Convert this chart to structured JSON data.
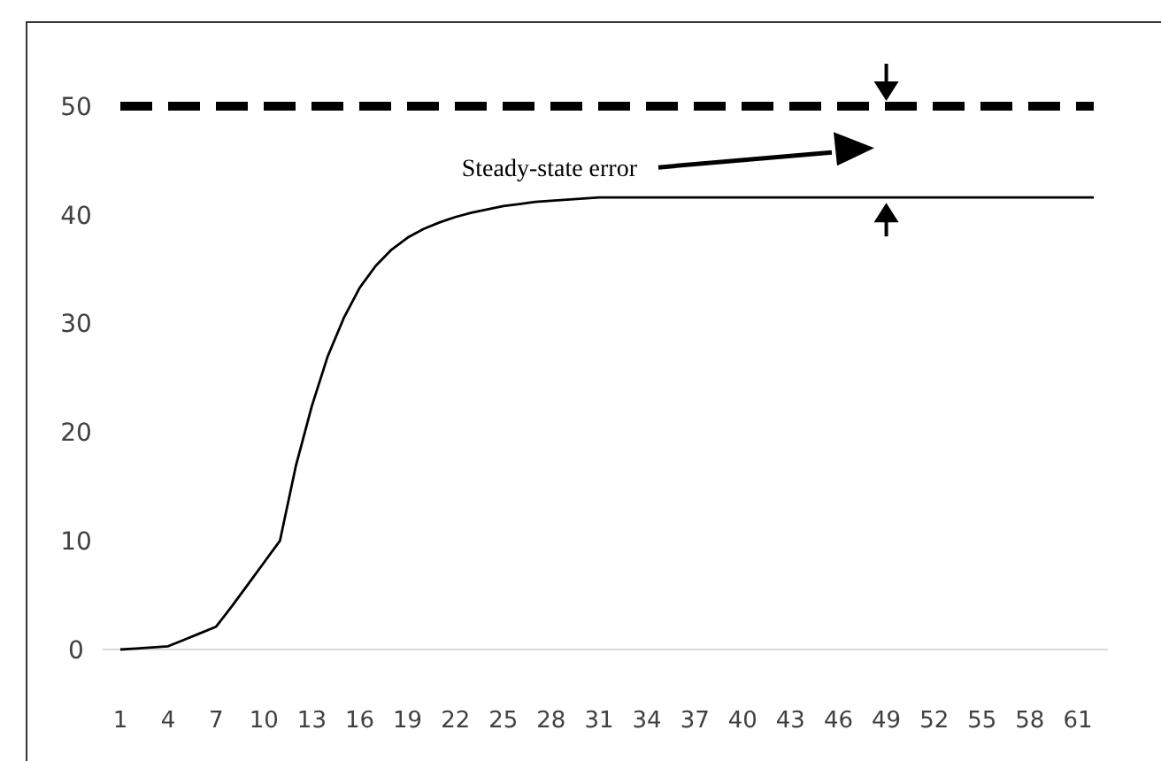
{
  "chart_data": {
    "type": "line",
    "categories": [
      "1",
      null,
      null,
      "4",
      null,
      null,
      "7",
      null,
      null,
      "10",
      null,
      null,
      "13",
      null,
      null,
      "16",
      null,
      null,
      "19",
      null,
      null,
      "22",
      null,
      null,
      "25",
      null,
      null,
      "28",
      null,
      null,
      "31",
      null,
      null,
      "34",
      null,
      null,
      "37",
      null,
      null,
      "40",
      null,
      null,
      "43",
      null,
      null,
      "46",
      null,
      null,
      "49",
      null,
      null,
      "52",
      null,
      null,
      "55",
      null,
      null,
      "58",
      null,
      null,
      "61",
      null
    ],
    "series": [
      {
        "color": "#000000",
        "line_style": "dashed",
        "values": [
          50,
          50,
          50,
          50,
          50,
          50,
          50,
          50,
          50,
          50,
          50,
          50,
          50,
          50,
          50,
          50,
          50,
          50,
          50,
          50,
          50,
          50,
          50,
          50,
          50,
          50,
          50,
          50,
          50,
          50,
          50,
          50,
          50,
          50,
          50,
          50,
          50,
          50,
          50,
          50,
          50,
          50,
          50,
          50,
          50,
          50,
          50,
          50,
          50,
          50,
          50,
          50,
          50,
          50,
          50,
          50,
          50,
          50,
          50,
          50,
          50,
          50
        ]
      },
      {
        "color": "#000000",
        "line_style": "solid",
        "values": [
          0,
          0.1,
          0.2,
          0.3,
          0.9,
          1.5,
          2.1,
          4,
          6,
          8,
          10,
          16.9,
          22.4,
          27,
          30.5,
          33.3,
          35.3,
          36.8,
          37.9,
          38.7,
          39.3,
          39.8,
          40.2,
          40.5,
          40.8,
          41,
          41.2,
          41.3,
          41.4,
          41.5,
          41.6,
          41.6,
          41.6,
          41.6,
          41.6,
          41.6,
          41.6,
          41.6,
          41.6,
          41.6,
          41.6,
          41.6,
          41.6,
          41.6,
          41.6,
          41.6,
          41.6,
          41.6,
          41.6,
          41.6,
          41.6,
          41.6,
          41.6,
          41.6,
          41.6,
          41.6,
          41.6,
          41.6,
          41.6,
          41.6,
          41.6,
          41.6
        ]
      }
    ],
    "ylim": [
      0,
      50
    ],
    "yticks": [
      0,
      10,
      20,
      30,
      40,
      50
    ],
    "grid": false,
    "marker": "none",
    "annotations": [
      "Steady-state error"
    ]
  }
}
